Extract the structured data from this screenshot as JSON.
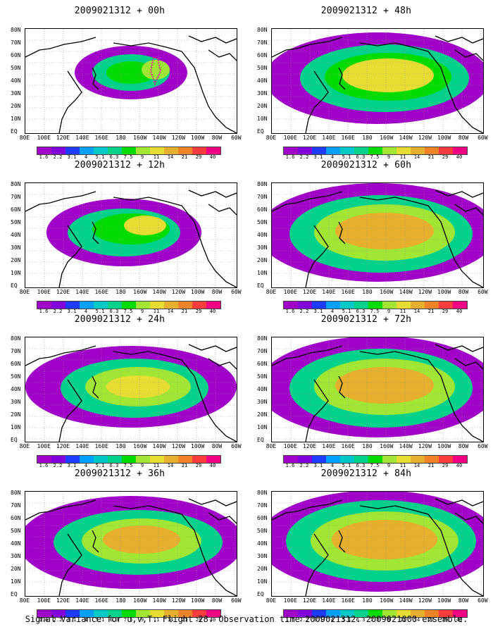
{
  "panels": [
    {
      "title": "2009021312 + 00h"
    },
    {
      "title": "2009021312 + 48h"
    },
    {
      "title": "2009021312 + 12h"
    },
    {
      "title": "2009021312 + 60h"
    },
    {
      "title": "2009021312 + 24h"
    },
    {
      "title": "2009021312 + 72h"
    },
    {
      "title": "2009021312 + 36h"
    },
    {
      "title": "2009021312 + 84h"
    }
  ],
  "lat_labels": [
    "80N",
    "70N",
    "60N",
    "50N",
    "40N",
    "30N",
    "20N",
    "10N",
    "EQ"
  ],
  "lon_labels": [
    "80E",
    "100E",
    "120E",
    "140E",
    "160E",
    "180",
    "160W",
    "140W",
    "120W",
    "100W",
    "80W",
    "60W"
  ],
  "colorbar": {
    "labels": [
      "1.6",
      "2.2",
      "3.1",
      "4",
      "5.1",
      "6.3",
      "7.5",
      "9",
      "11",
      "14",
      "21",
      "29",
      "40"
    ],
    "colors": [
      "#a000c8",
      "#8200dc",
      "#1e3cff",
      "#00a0ff",
      "#00c8c8",
      "#00d28c",
      "#00dc00",
      "#a0e632",
      "#e6dc32",
      "#e6af2d",
      "#f08228",
      "#fa3c3c",
      "#f00082"
    ]
  },
  "footer": "Signal Variance for u,v,T. Flight 28. Observation time 2009021312. 2009021000 ensemble."
}
